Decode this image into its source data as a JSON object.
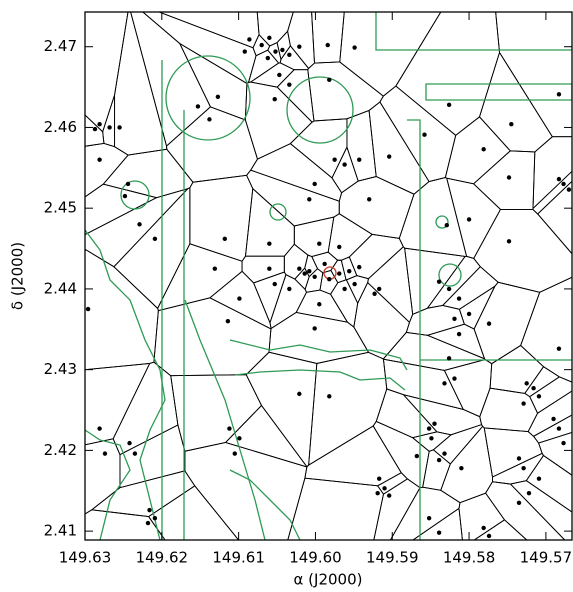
{
  "chart_data": {
    "type": "scatter",
    "x_label": "α (J2000)",
    "y_label": "δ (J2000)",
    "color": "#000000",
    "xlim": [
      149.63,
      149.5666
    ],
    "ylim": [
      2.4089,
      2.4743
    ],
    "xticks": [
      149.63,
      149.62,
      149.61,
      {
        "value": 149.6,
        "label": "149.60"
      },
      149.59,
      149.58,
      149.57
    ],
    "yticks": [
      2.41,
      2.42,
      2.43,
      2.44,
      2.45,
      2.46,
      2.47
    ],
    "x": [
      149.6086,
      149.607,
      149.606,
      149.6052,
      149.6043,
      149.6034,
      149.6062,
      149.6021,
      149.6092,
      149.6047,
      149.6034,
      149.5984,
      149.5949,
      149.5982,
      149.6053,
      149.6287,
      149.6281,
      149.6268,
      149.6255,
      149.6281,
      149.6244,
      149.6248,
      149.6229,
      149.6209,
      149.6296,
      149.6153,
      149.6138,
      149.6127,
      149.5975,
      149.5962,
      149.5943,
      149.6001,
      149.6008,
      149.593,
      149.5904,
      149.5858,
      149.5781,
      149.5745,
      149.5826,
      149.5677,
      149.5683,
      149.567,
      149.5748,
      149.58,
      149.5829,
      149.5748,
      149.5683,
      149.6014,
      149.6008,
      149.6001,
      149.6021,
      149.5988,
      149.5982,
      149.5969,
      149.5956,
      149.5962,
      149.5949,
      149.5943,
      149.606,
      149.6053,
      149.6034,
      149.5995,
      149.6001,
      149.5923,
      149.5917,
      149.6118,
      149.6131,
      149.6099,
      149.606,
      149.5995,
      149.5969,
      149.6114,
      149.5839,
      149.5826,
      149.5813,
      149.5819,
      149.58,
      149.5774,
      149.5813,
      149.5683,
      149.5826,
      149.5832,
      149.5819,
      149.5725,
      149.5716,
      149.5709,
      149.5729,
      149.5852,
      149.5845,
      149.5849,
      149.5832,
      149.5839,
      149.5868,
      149.581,
      149.5735,
      149.5729,
      149.5709,
      149.5722,
      149.5735,
      149.5683,
      149.5677,
      149.569,
      149.5917,
      149.591,
      149.5904,
      149.5919,
      149.5982,
      149.6021,
      149.5852,
      149.5781,
      149.5774,
      149.5839,
      149.6281,
      149.6242,
      149.6235,
      149.6216,
      149.6209,
      149.6218,
      149.6112,
      149.6099,
      149.6105,
      149.6274
    ],
    "values": [
      2.4709,
      2.4702,
      2.4711,
      2.4694,
      2.4696,
      2.469,
      2.4686,
      2.47,
      2.4694,
      2.4665,
      2.4653,
      2.4702,
      2.4699,
      2.4659,
      2.4635,
      2.4598,
      2.4604,
      2.46,
      2.46,
      2.456,
      2.453,
      2.4515,
      2.448,
      2.4462,
      2.4375,
      2.4626,
      2.461,
      2.4638,
      2.456,
      2.4554,
      2.456,
      2.453,
      2.4511,
      2.4511,
      2.4564,
      2.4591,
      2.4573,
      2.4604,
      2.4628,
      2.453,
      2.4536,
      2.4523,
      2.4538,
      2.4486,
      2.4479,
      2.4459,
      2.4641,
      2.4419,
      2.4422,
      2.4415,
      2.4425,
      2.4431,
      2.4412,
      2.4419,
      2.4422,
      2.44,
      2.4406,
      2.4427,
      2.4425,
      2.4406,
      2.44,
      2.4381,
      2.4351,
      2.4394,
      2.44,
      2.4462,
      2.4425,
      2.4388,
      2.4456,
      2.4456,
      2.4452,
      2.436,
      2.4409,
      2.44,
      2.4388,
      2.4363,
      2.4369,
      2.4357,
      2.4344,
      2.4326,
      2.4314,
      2.4283,
      2.4289,
      2.4283,
      2.4277,
      2.4267,
      2.4258,
      2.4227,
      2.4233,
      2.4215,
      2.4196,
      2.4188,
      2.4193,
      2.4178,
      2.419,
      2.4178,
      2.4165,
      2.4147,
      2.4135,
      2.4227,
      2.4209,
      2.4239,
      2.4165,
      2.4153,
      2.4144,
      2.4147,
      2.4267,
      2.427,
      2.4116,
      2.4104,
      2.4094,
      2.4098,
      2.4227,
      2.4209,
      2.4196,
      2.4126,
      2.4116,
      2.411,
      2.4227,
      2.4215,
      2.4196,
      2.4196
    ]
  }
}
